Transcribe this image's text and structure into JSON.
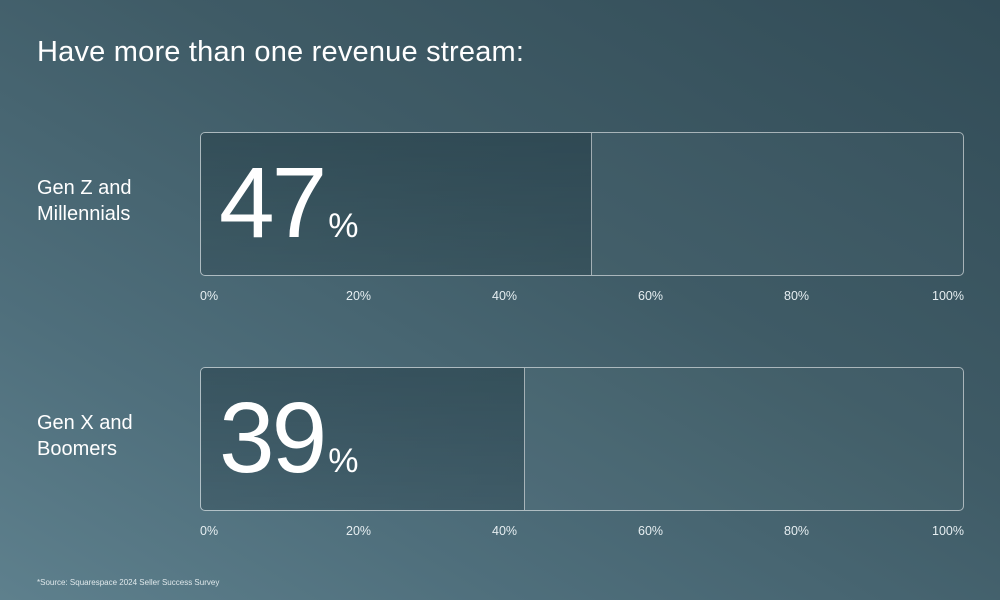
{
  "title": "Have more than one revenue stream:",
  "source": "*Source: Squarespace 2024 Seller Success Survey",
  "chart_data": {
    "type": "bar",
    "orientation": "horizontal",
    "title": "Have more than one revenue stream:",
    "categories": [
      "Gen Z and Millennials",
      "Gen X and Boomers"
    ],
    "category_lines": [
      [
        "Gen Z and",
        "Millennials"
      ],
      [
        "Gen X and",
        "Boomers"
      ]
    ],
    "values": [
      47,
      39
    ],
    "value_labels": [
      "47",
      "39"
    ],
    "unit": "%",
    "xlim": [
      0,
      100
    ],
    "xticks": [
      "0%",
      "20%",
      "40%",
      "60%",
      "80%",
      "100%"
    ],
    "grid": false,
    "legend": "none"
  },
  "colors": {
    "background_dark": "#324c57",
    "background_light": "#5e808d",
    "text": "#ffffff"
  }
}
